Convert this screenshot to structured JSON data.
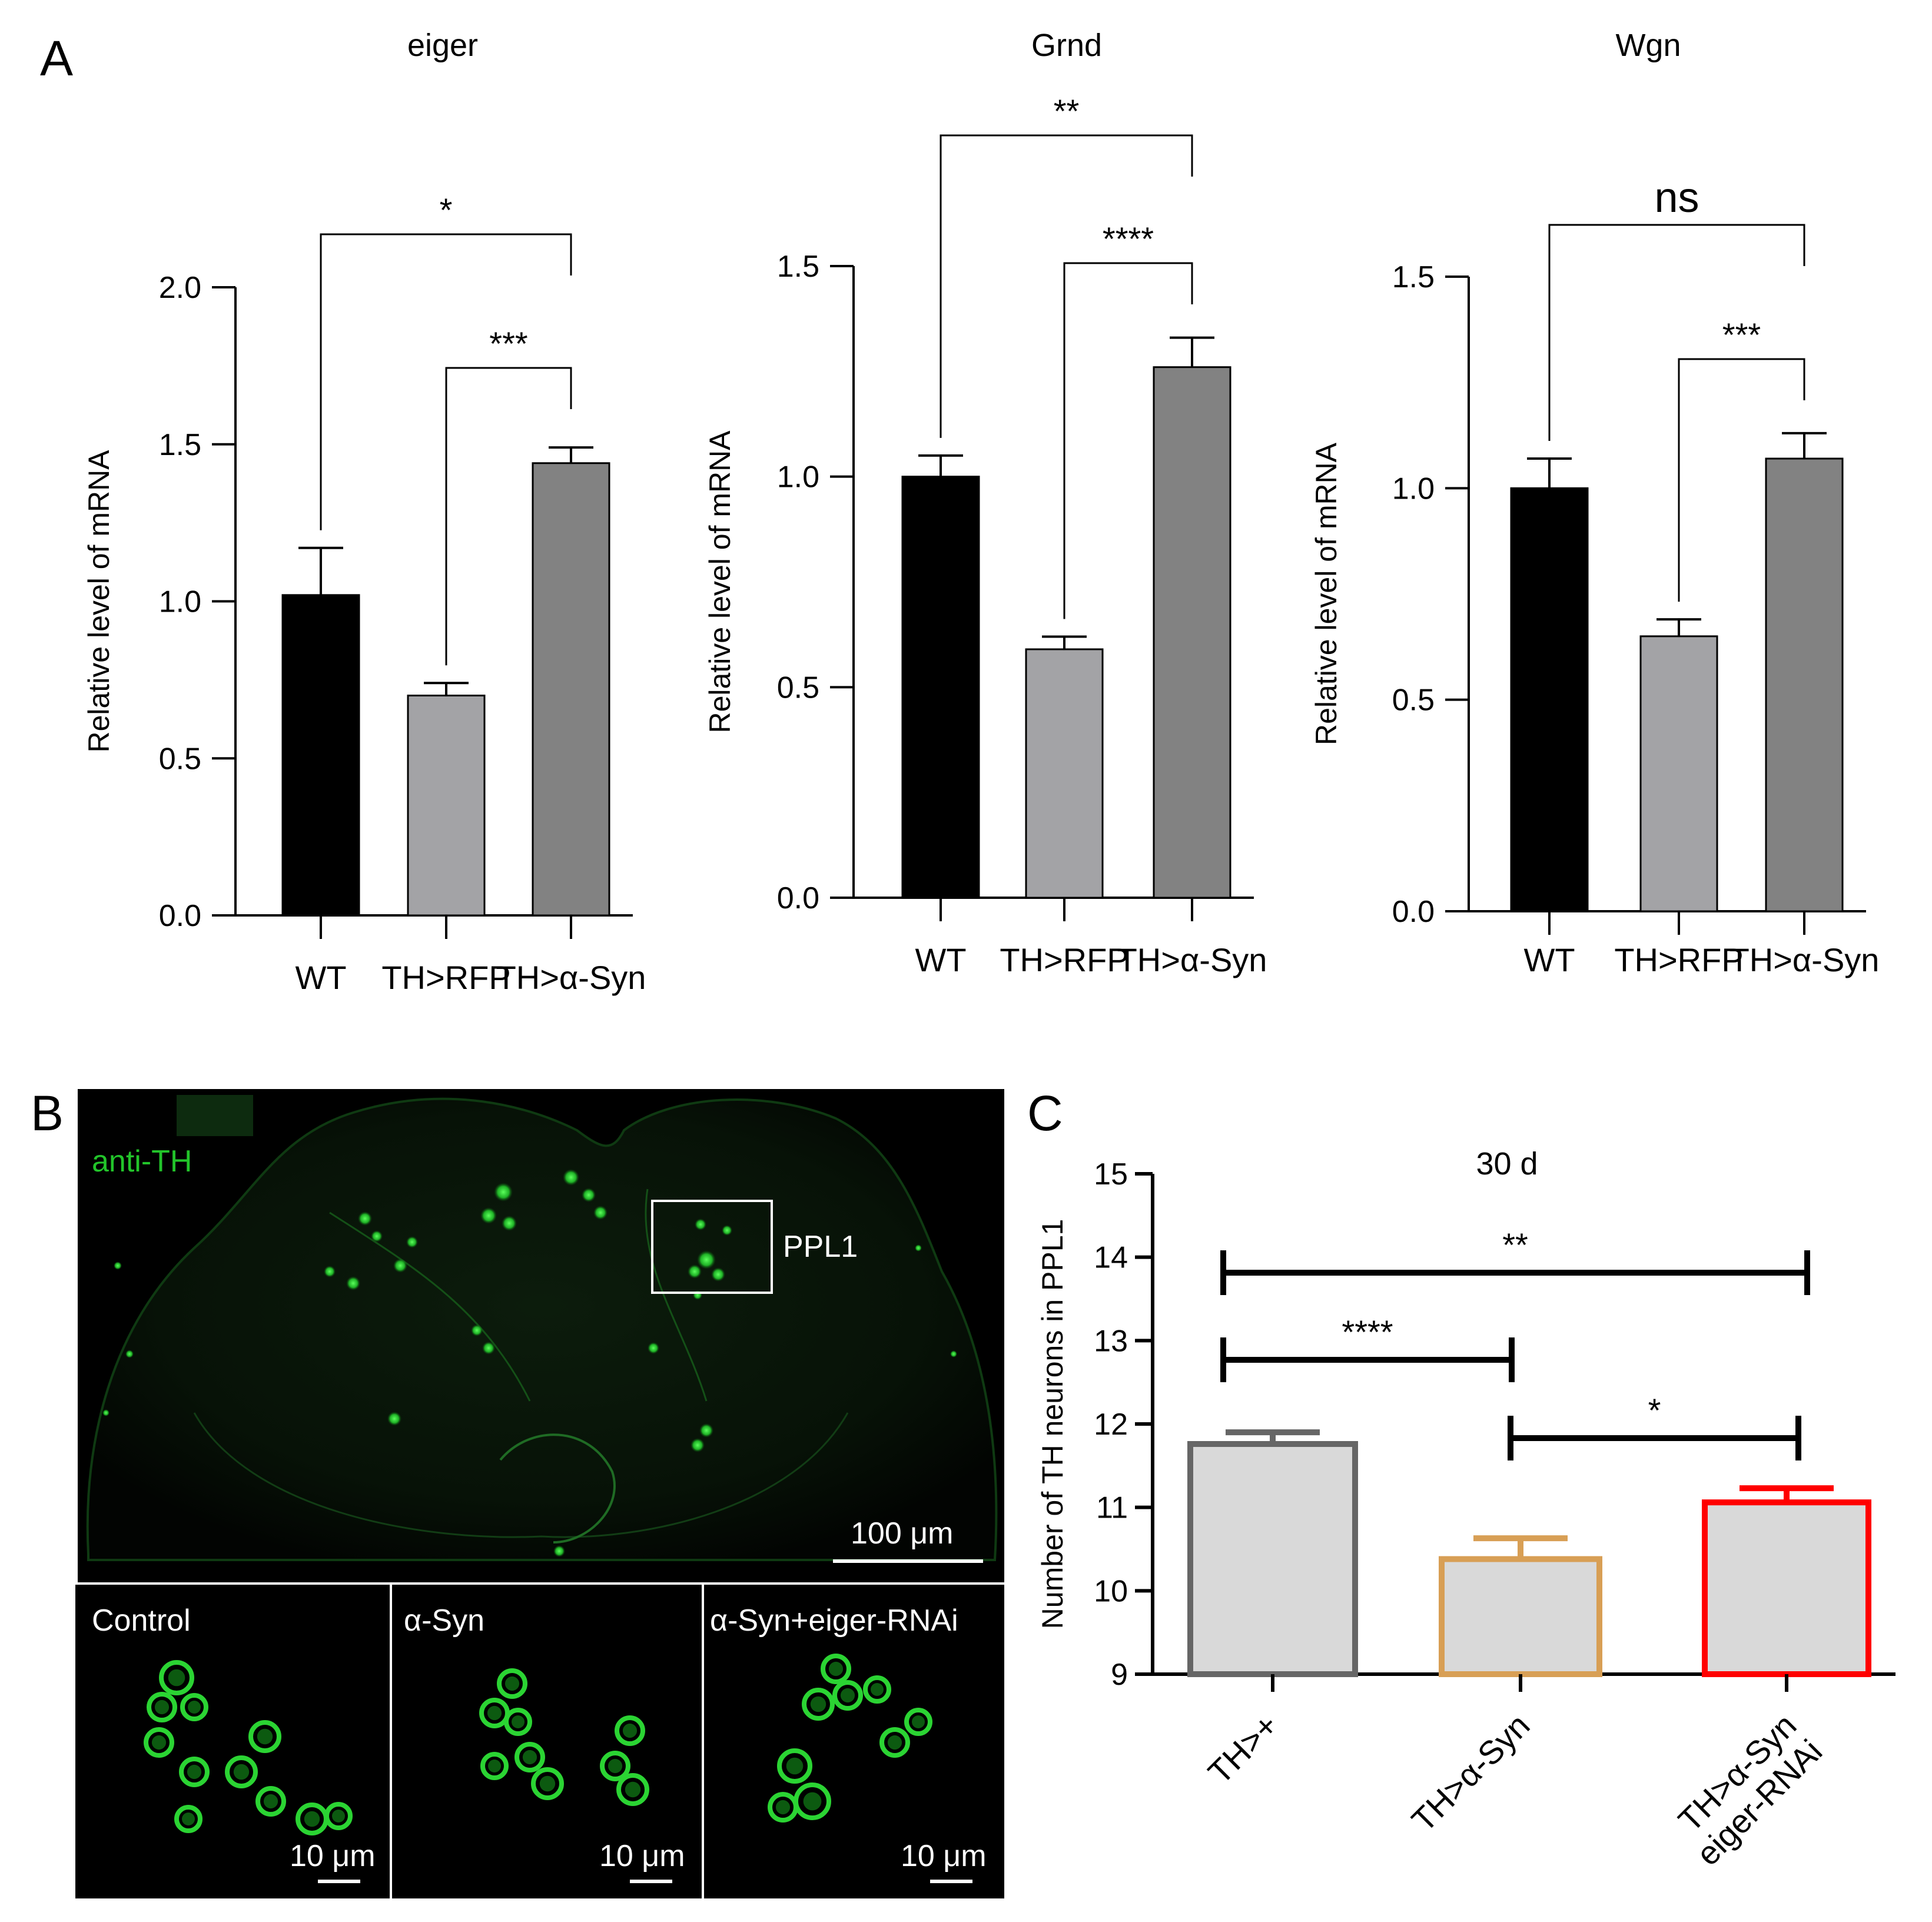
{
  "panels": {
    "a": "A",
    "b": "B",
    "c": "C"
  },
  "chart_data": [
    {
      "type": "bar",
      "title": "eiger",
      "ylabel": "Relative level of mRNA",
      "categories": [
        "WT",
        "TH>RFP",
        "TH>α-Syn"
      ],
      "values": [
        1.02,
        0.7,
        1.44
      ],
      "errors": [
        0.15,
        0.04,
        0.05
      ],
      "colors": [
        "#000000",
        "#a3a3a6",
        "#828282"
      ],
      "ylim": [
        0,
        2.0
      ],
      "yticks": [
        "0.0",
        "0.5",
        "1.0",
        "1.5",
        "2.0"
      ],
      "significance": [
        {
          "from": 1,
          "to": 2,
          "label": "***"
        },
        {
          "from": 0,
          "to": 2,
          "label": "*"
        }
      ]
    },
    {
      "type": "bar",
      "title": "Grnd",
      "ylabel": "Relative level of mRNA",
      "categories": [
        "WT",
        "TH>RFP",
        "TH>α-Syn"
      ],
      "values": [
        1.0,
        0.59,
        1.26
      ],
      "errors": [
        0.05,
        0.03,
        0.07
      ],
      "colors": [
        "#000000",
        "#a3a3a6",
        "#828282"
      ],
      "ylim": [
        0,
        1.5
      ],
      "yticks": [
        "0.0",
        "0.5",
        "1.0",
        "1.5"
      ],
      "significance": [
        {
          "from": 1,
          "to": 2,
          "label": "****"
        },
        {
          "from": 0,
          "to": 2,
          "label": "**"
        }
      ]
    },
    {
      "type": "bar",
      "title": "Wgn",
      "ylabel": "Relative level of mRNA",
      "categories": [
        "WT",
        "TH>RFP",
        "TH>α-Syn"
      ],
      "values": [
        1.0,
        0.65,
        1.07
      ],
      "errors": [
        0.07,
        0.04,
        0.06
      ],
      "colors": [
        "#000000",
        "#a3a3a6",
        "#828282"
      ],
      "ylim": [
        0,
        1.5
      ],
      "yticks": [
        "0.0",
        "0.5",
        "1.0",
        "1.5"
      ],
      "significance": [
        {
          "from": 1,
          "to": 2,
          "label": "***"
        },
        {
          "from": 0,
          "to": 2,
          "label": "ns"
        }
      ]
    },
    {
      "type": "bar",
      "title": "30 d",
      "ylabel": "Number of TH neurons in PPL1",
      "categories": [
        "TH>+",
        "TH>α-Syn",
        "TH>α-Syn\neiger-RNAi"
      ],
      "values": [
        11.76,
        10.38,
        11.06
      ],
      "errors": [
        0.14,
        0.25,
        0.17
      ],
      "fill": "#d9d9d9",
      "edge_colors": [
        "#666666",
        "#d89f55",
        "#ff0000"
      ],
      "ylim": [
        9,
        15
      ],
      "yticks": [
        "9",
        "10",
        "11",
        "12",
        "13",
        "14",
        "15"
      ],
      "significance": [
        {
          "from": 1,
          "to": 2,
          "label": "*"
        },
        {
          "from": 0,
          "to": 1,
          "label": "****"
        },
        {
          "from": 0,
          "to": 2,
          "label": "**"
        }
      ]
    }
  ],
  "images": {
    "main_label": "anti-TH",
    "roi_label": "PPL1",
    "main_scale": "100 μm",
    "sub_labels": [
      "Control",
      "α-Syn",
      "α-Syn+eiger-RNAi"
    ],
    "sub_scale": "10 μm",
    "stain_color": "#22c42a"
  }
}
